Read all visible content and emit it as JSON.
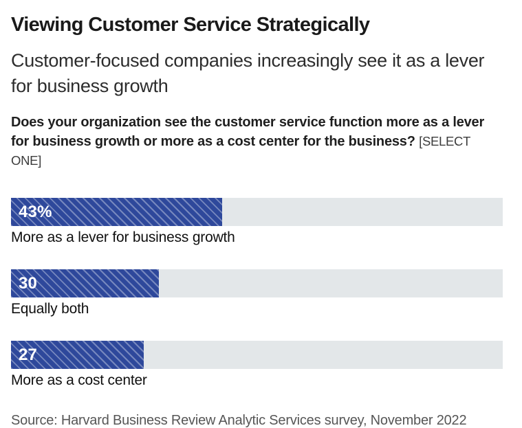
{
  "chart_data": {
    "type": "bar",
    "orientation": "horizontal",
    "title": "Viewing Customer Service Strategically",
    "subtitle": "Customer-focused companies increasingly see it as a lever for business growth",
    "question": "Does your organization see the customer service function more as a lever for business growth or more as a cost center for the business?",
    "question_tag": "[SELECT ONE]",
    "categories": [
      "More as a lever for business growth",
      "Equally both",
      "More as a cost center"
    ],
    "values": [
      43,
      30,
      27
    ],
    "value_labels": [
      "43%",
      "30",
      "27"
    ],
    "xlim": [
      0,
      100
    ],
    "grid": "off",
    "legend": "none",
    "source": "Source: Harvard Business Review Analytic Services survey, November 2022",
    "colors": {
      "bar_fill": "#2e489b",
      "bar_hatch_stripe": "#707fb9",
      "bar_track": "#e3e7e9",
      "bottom_rule": "#1d3160"
    }
  }
}
